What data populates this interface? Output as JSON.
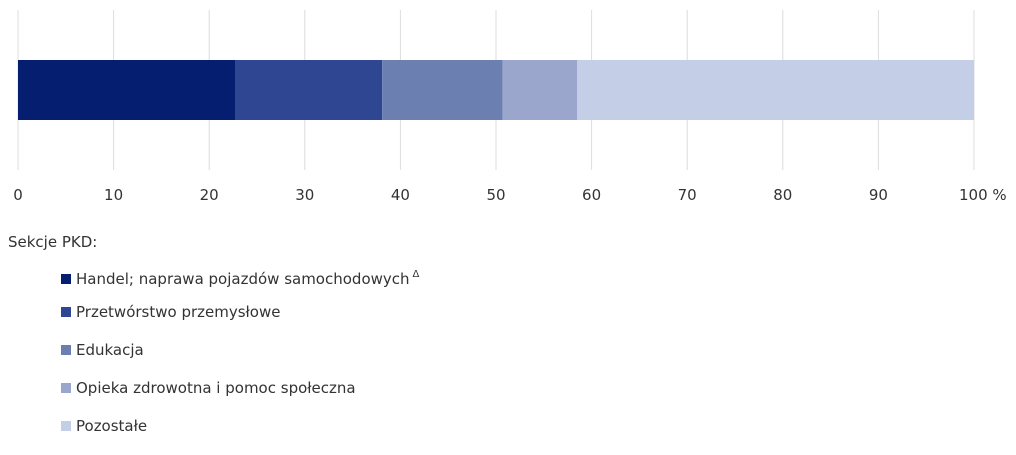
{
  "chart_data": {
    "type": "bar",
    "orientation": "horizontal",
    "stacked": true,
    "xlim": [
      0,
      100
    ],
    "x_ticks": [
      "0",
      "10",
      "20",
      "30",
      "40",
      "50",
      "60",
      "70",
      "80",
      "90",
      "100 %"
    ],
    "grid": true,
    "legend_position": "bottom-left",
    "series": [
      {
        "name": "Handel; naprawa pojazdów samochodowych",
        "note": "Δ",
        "value": 22.7,
        "color": "#061e6f"
      },
      {
        "name": "Przetwórstwo przemysłowe",
        "value": 15.4,
        "color": "#2f4693"
      },
      {
        "name": "Edukacja",
        "value": 12.6,
        "color": "#6b7fb1"
      },
      {
        "name": "Opieka zdrowotna i pomoc społeczna",
        "value": 7.8,
        "color": "#9aa6cb"
      },
      {
        "name": "Pozostałe",
        "value": 41.5,
        "color": "#c4cee6"
      }
    ]
  },
  "legend": {
    "title": "Sekcje PKD:"
  }
}
